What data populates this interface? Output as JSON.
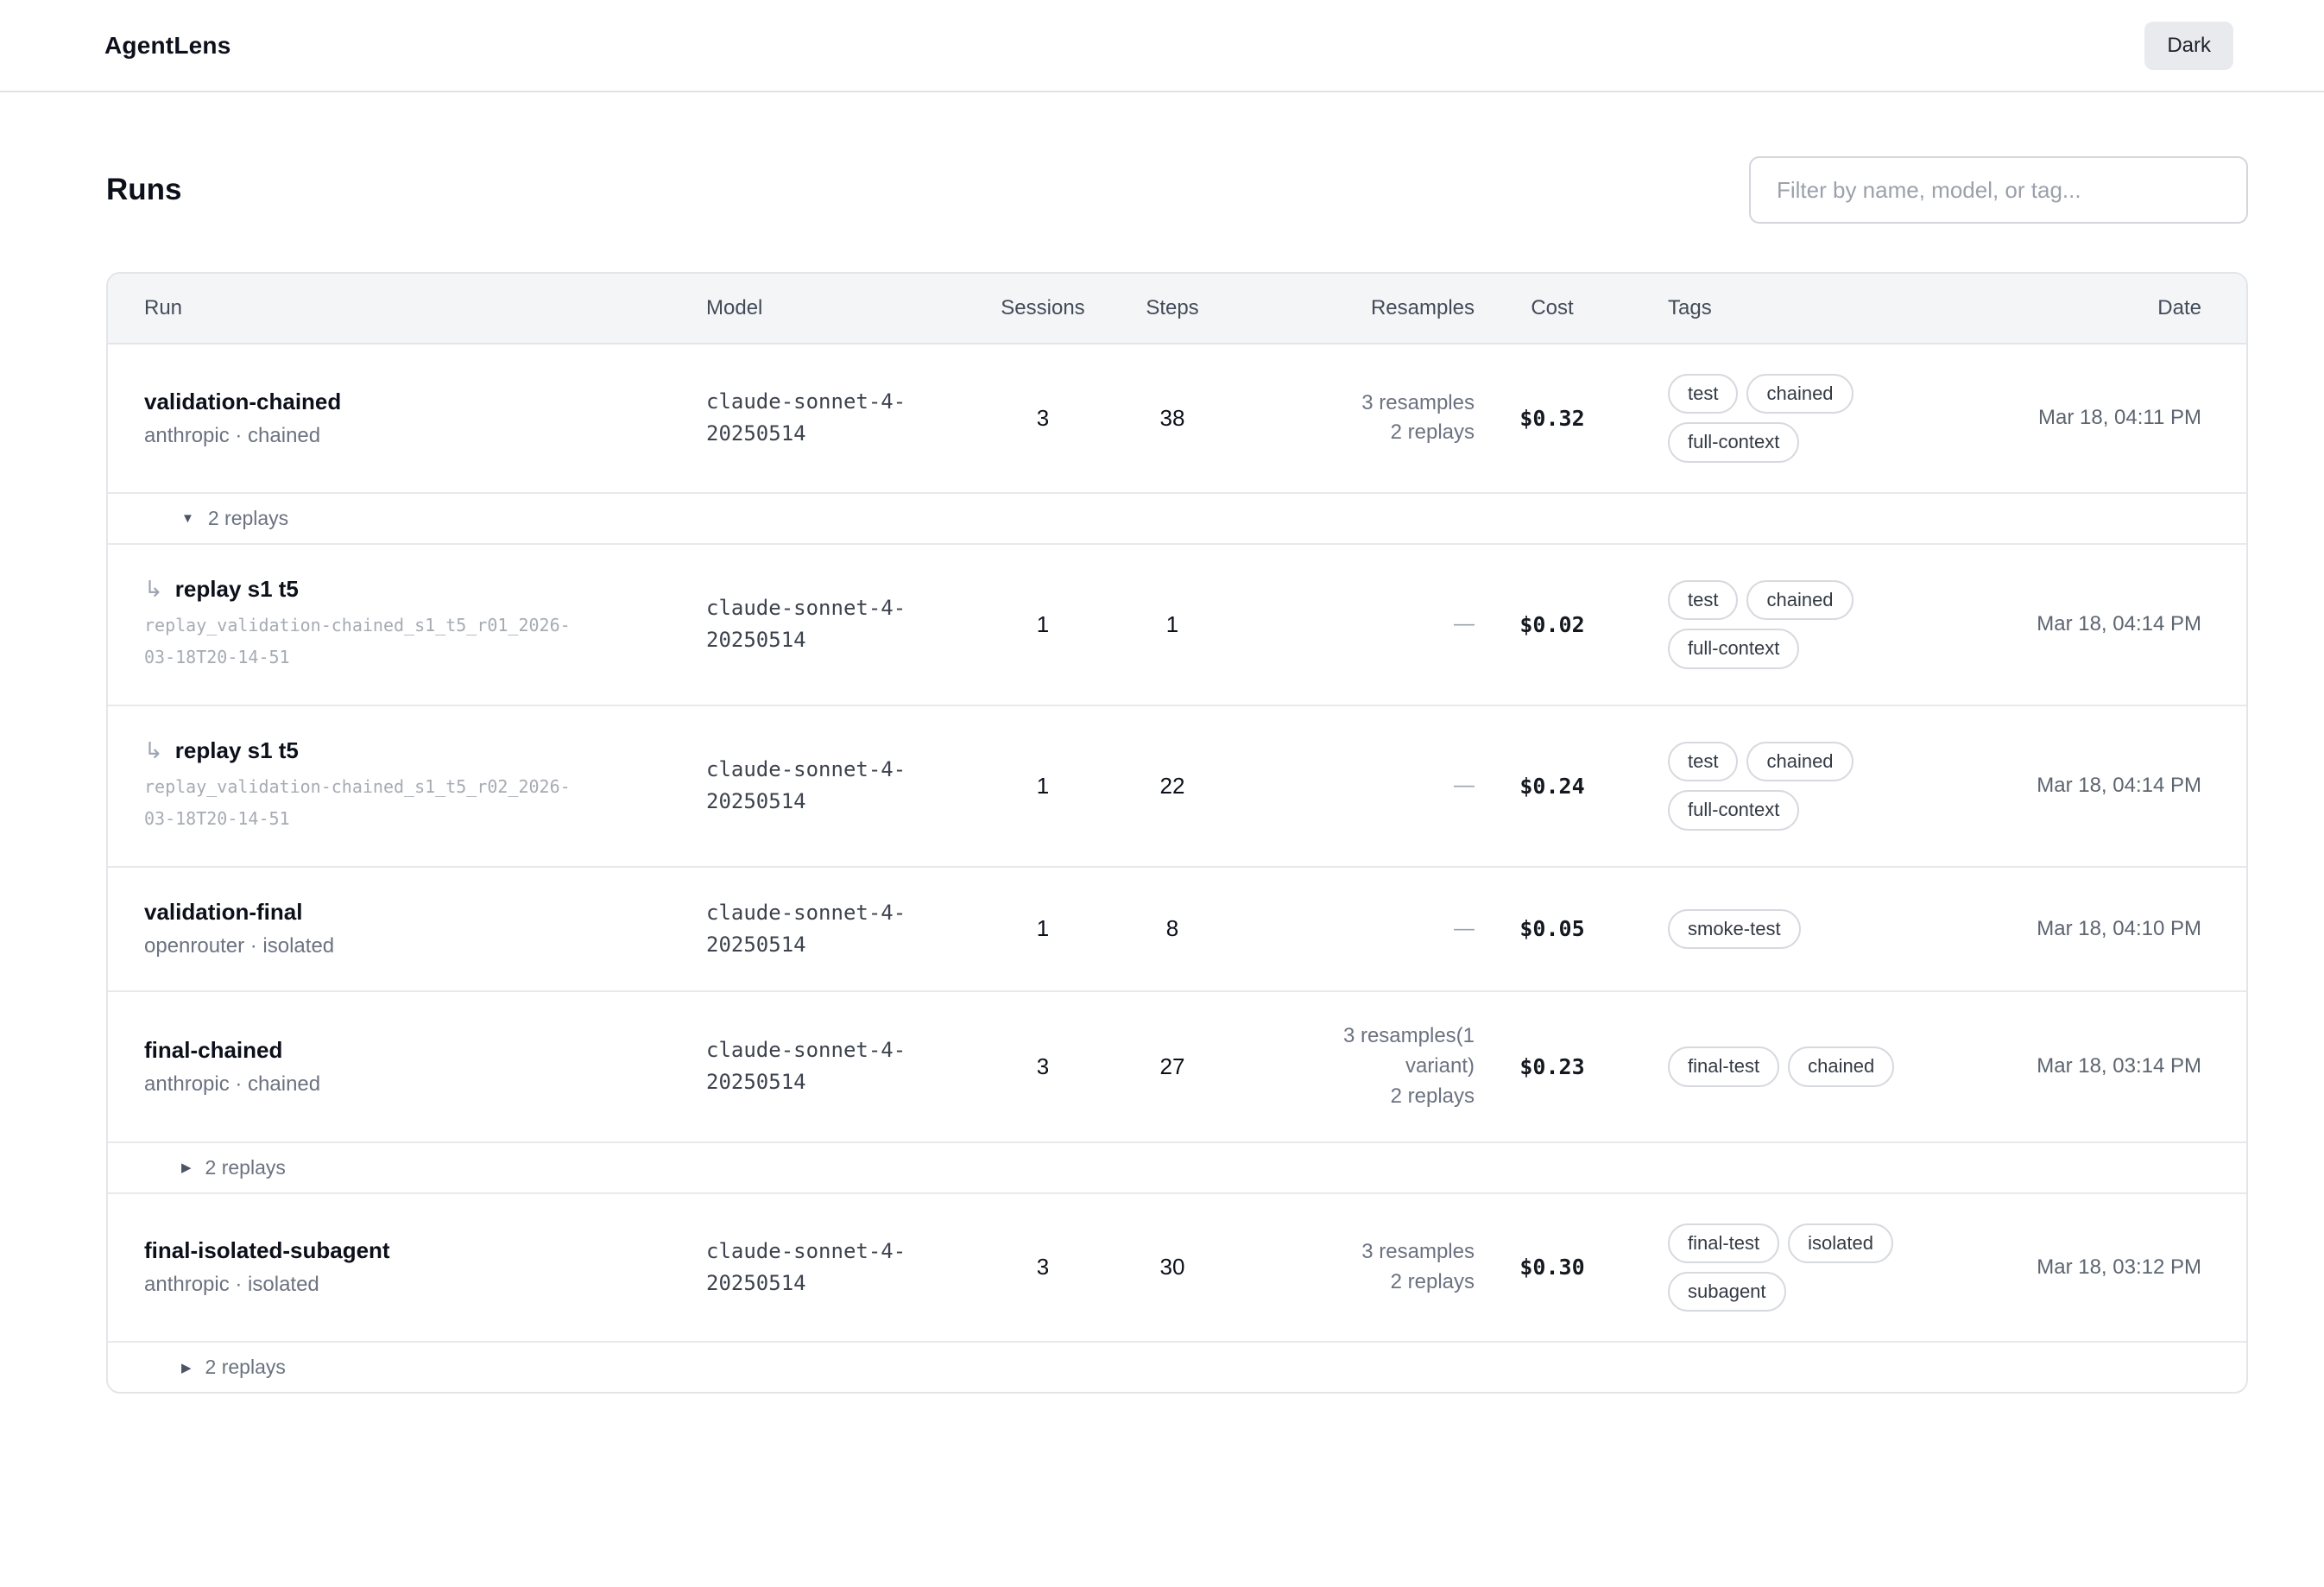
{
  "header": {
    "brand": "AgentLens",
    "theme_button": "Dark"
  },
  "page": {
    "title": "Runs",
    "filter_placeholder": "Filter by name, model, or tag..."
  },
  "colors": {
    "header_row_bg": "#f4f5f7",
    "panel_border": "#e3e5e9",
    "pill_border": "#d6d9de",
    "button_bg": "#e9eaed",
    "text_primary": "#0c101a",
    "text_secondary": "#6b7280"
  },
  "table": {
    "columns": {
      "run": "Run",
      "model": "Model",
      "sessions": "Sessions",
      "steps": "Steps",
      "resamples": "Resamples",
      "cost": "Cost",
      "tags": "Tags",
      "date": "Date"
    },
    "rows": [
      {
        "type": "run",
        "name": "validation-chained",
        "sub": "anthropic · chained",
        "model": "claude-sonnet-4-20250514",
        "sessions": "3",
        "steps": "38",
        "resamples": [
          "3 resamples",
          "2 replays"
        ],
        "cost": "$0.32",
        "tags": [
          "test",
          "chained",
          "full-context"
        ],
        "date": "Mar 18, 04:11 PM"
      },
      {
        "type": "toggle",
        "state": "expanded",
        "arrow": "▼",
        "label": "2 replays"
      },
      {
        "type": "replay",
        "arrow": "↳",
        "name": "replay s1 t5",
        "id": "replay_validation-chained_s1_t5_r01_2026-03-18T20-14-51",
        "model": "claude-sonnet-4-20250514",
        "sessions": "1",
        "steps": "1",
        "resamples_empty": "—",
        "cost": "$0.02",
        "tags": [
          "test",
          "chained",
          "full-context"
        ],
        "date": "Mar 18, 04:14 PM"
      },
      {
        "type": "replay",
        "arrow": "↳",
        "name": "replay s1 t5",
        "id": "replay_validation-chained_s1_t5_r02_2026-03-18T20-14-51",
        "model": "claude-sonnet-4-20250514",
        "sessions": "1",
        "steps": "22",
        "resamples_empty": "—",
        "cost": "$0.24",
        "tags": [
          "test",
          "chained",
          "full-context"
        ],
        "date": "Mar 18, 04:14 PM"
      },
      {
        "type": "run",
        "name": "validation-final",
        "sub": "openrouter · isolated",
        "model": "claude-sonnet-4-20250514",
        "sessions": "1",
        "steps": "8",
        "resamples_empty": "—",
        "cost": "$0.05",
        "tags": [
          "smoke-test"
        ],
        "date": "Mar 18, 04:10 PM"
      },
      {
        "type": "run",
        "name": "final-chained",
        "sub": "anthropic · chained",
        "model": "claude-sonnet-4-20250514",
        "sessions": "3",
        "steps": "27",
        "resamples": [
          "3 resamples(1 variant)",
          "2 replays"
        ],
        "cost": "$0.23",
        "tags": [
          "final-test",
          "chained"
        ],
        "date": "Mar 18, 03:14 PM"
      },
      {
        "type": "toggle",
        "state": "collapsed",
        "arrow": "▶",
        "label": "2 replays"
      },
      {
        "type": "run",
        "name": "final-isolated-subagent",
        "sub": "anthropic · isolated",
        "model": "claude-sonnet-4-20250514",
        "sessions": "3",
        "steps": "30",
        "resamples": [
          "3 resamples",
          "2 replays"
        ],
        "cost": "$0.30",
        "tags": [
          "final-test",
          "isolated",
          "subagent"
        ],
        "date": "Mar 18, 03:12 PM"
      },
      {
        "type": "toggle",
        "state": "collapsed",
        "arrow": "▶",
        "label": "2 replays"
      }
    ]
  }
}
